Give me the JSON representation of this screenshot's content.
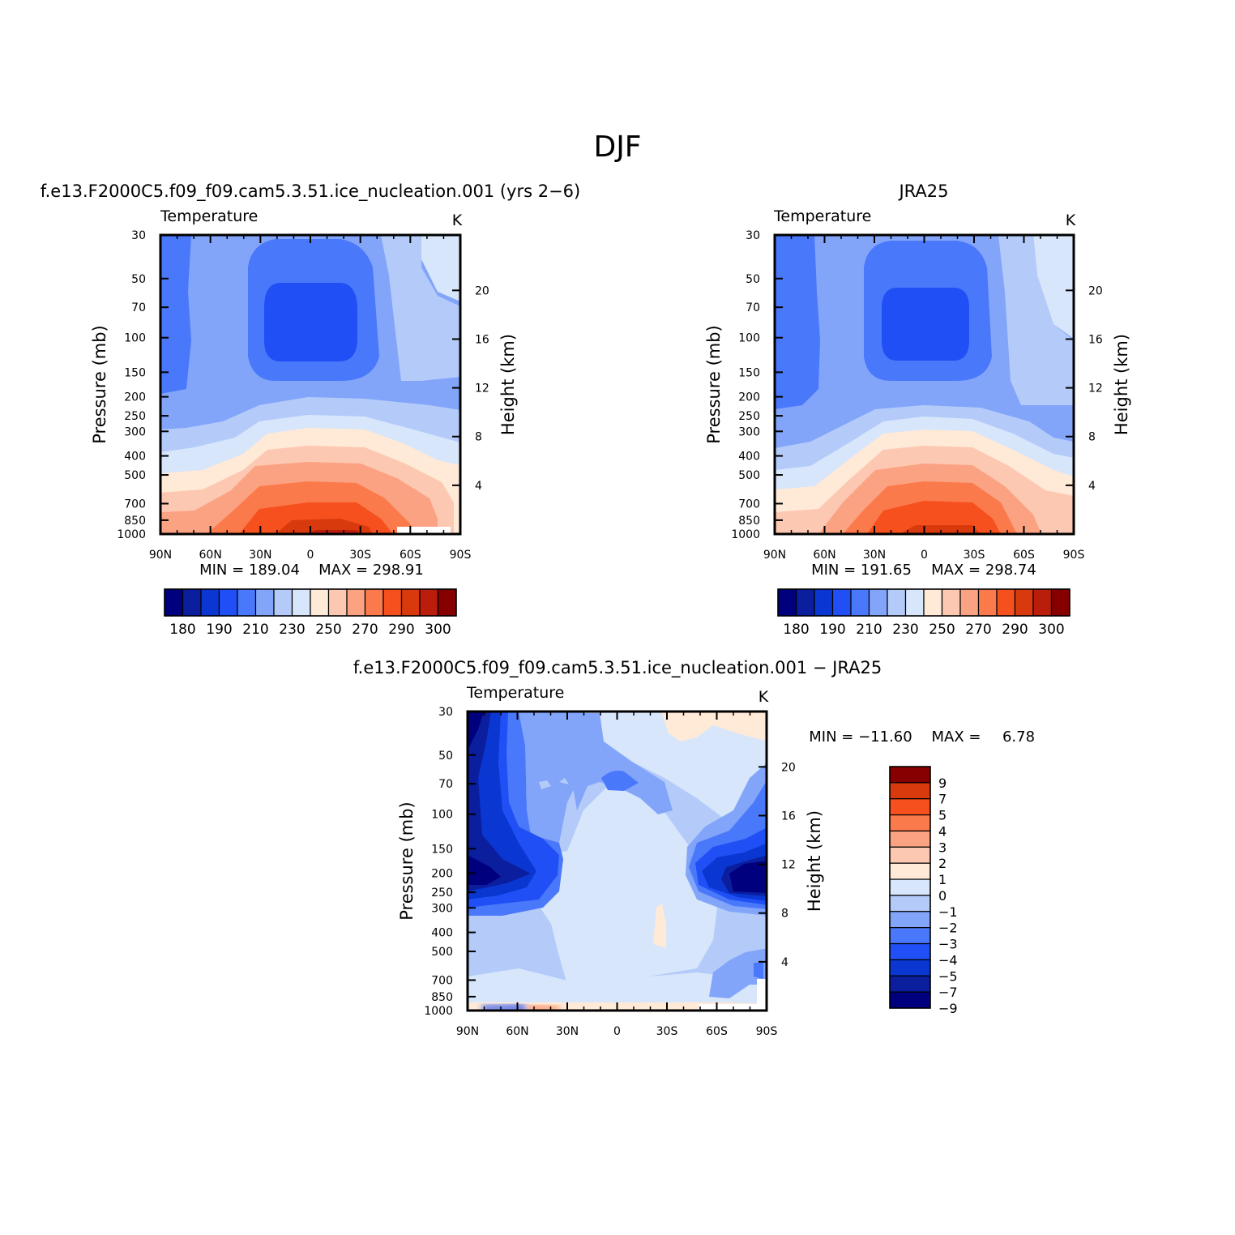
{
  "figure_title": "DJF",
  "colors": {
    "temp_levels": [
      "#00007f",
      "#0a1e9e",
      "#0a37d2",
      "#2050f5",
      "#4a78fa",
      "#82a5fa",
      "#b4cbfa",
      "#d7e6fb",
      "#ffe9d7",
      "#fdc8b2",
      "#fba282",
      "#fb7a4b",
      "#f5501e",
      "#d83a0e",
      "#ba1e0a",
      "#870000"
    ],
    "diff_levels": [
      "#00007f",
      "#0a1e9e",
      "#0a37d2",
      "#2050f5",
      "#4a78fa",
      "#82a5fa",
      "#b4cbfa",
      "#d7e6fb",
      "#ffe9d7",
      "#fdc8b2",
      "#fba282",
      "#fb7a4b",
      "#f5501e",
      "#d83a0e",
      "#870000"
    ]
  },
  "chart_data": [
    {
      "type": "heatmap",
      "title": "f.e13.F2000C5.f09_f09.cam5.3.51.ice_nucleation.001 (yrs 2−6)",
      "left_string": "Temperature",
      "units": "K",
      "xlabel": "",
      "ylabel": "Pressure (mb)",
      "ylabel_right": "Height (km)",
      "x_ticks": [
        "90N",
        "60N",
        "30N",
        "0",
        "30S",
        "60S",
        "90S"
      ],
      "y_ticks": [
        "30",
        "50",
        "70",
        "100",
        "150",
        "200",
        "250",
        "300",
        "400",
        "500",
        "700",
        "850",
        "1000"
      ],
      "y_ticks_right": [
        "20",
        "16",
        "12",
        "8",
        "4"
      ],
      "min_label": "MIN = 189.04",
      "max_label": "MAX = 298.91",
      "min": 189.04,
      "max": 298.91,
      "colorbar_labels": [
        "180",
        "190",
        "210",
        "230",
        "250",
        "270",
        "290",
        "300"
      ]
    },
    {
      "type": "heatmap",
      "title": "JRA25",
      "left_string": "Temperature",
      "units": "K",
      "xlabel": "",
      "ylabel": "Pressure (mb)",
      "ylabel_right": "Height (km)",
      "x_ticks": [
        "90N",
        "60N",
        "30N",
        "0",
        "30S",
        "60S",
        "90S"
      ],
      "y_ticks": [
        "30",
        "50",
        "70",
        "100",
        "150",
        "200",
        "250",
        "300",
        "400",
        "500",
        "700",
        "850",
        "1000"
      ],
      "y_ticks_right": [
        "20",
        "16",
        "12",
        "8",
        "4"
      ],
      "min_label": "MIN = 191.65",
      "max_label": "MAX = 298.74",
      "min": 191.65,
      "max": 298.74,
      "colorbar_labels": [
        "180",
        "190",
        "210",
        "230",
        "250",
        "270",
        "290",
        "300"
      ]
    },
    {
      "type": "heatmap",
      "title": "f.e13.F2000C5.f09_f09.cam5.3.51.ice_nucleation.001 − JRA25",
      "left_string": "Temperature",
      "units": "K",
      "xlabel": "",
      "ylabel": "Pressure (mb)",
      "ylabel_right": "Height (km)",
      "x_ticks": [
        "90N",
        "60N",
        "30N",
        "0",
        "30S",
        "60S",
        "90S"
      ],
      "y_ticks": [
        "30",
        "50",
        "70",
        "100",
        "150",
        "200",
        "250",
        "300",
        "400",
        "500",
        "700",
        "850",
        "1000"
      ],
      "y_ticks_right": [
        "20",
        "16",
        "12",
        "8",
        "4"
      ],
      "min_label": "MIN = −11.60",
      "max_label": "MAX =",
      "max_value": "6.78",
      "min": -11.6,
      "max": 6.78,
      "colorbar_labels": [
        "9",
        "7",
        "5",
        "4",
        "3",
        "2",
        "1",
        "0",
        "−1",
        "−2",
        "−3",
        "−4",
        "−5",
        "−7",
        "−9"
      ]
    }
  ]
}
